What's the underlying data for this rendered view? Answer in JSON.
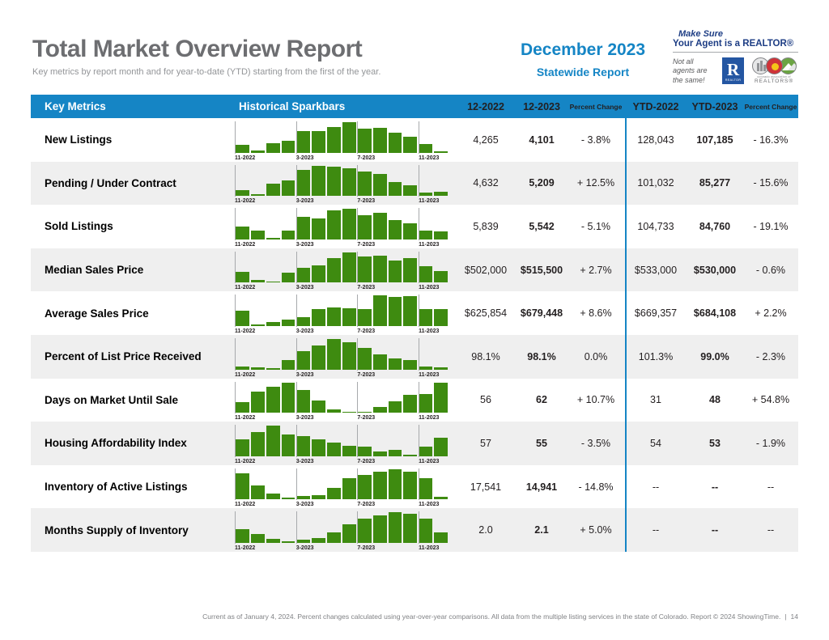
{
  "page": {
    "title": "Total Market Overview Report",
    "subtitle": "Key metrics by report month and for year-to-date (YTD) starting from the first of the year.",
    "report_month": "December 2023",
    "report_scope": "Statewide Report",
    "footer_text": "Current as of January 4, 2024. Percent changes calculated using year-over-year comparisons. All data from the multiple listing services in the state of Colorado. Report © 2024 ShowingTime.",
    "footer_separator": "|",
    "page_number": "14"
  },
  "branding": {
    "tagline_line1": "Make Sure",
    "tagline_line2": "Your Agent is a REALTOR®",
    "tagline_sub": "Not all agents are the same!",
    "realtor_r": "R",
    "realtor_logo_text": "REALTOR",
    "car_logo_line1": "colorado association of",
    "car_logo_line2": "REALTORS®"
  },
  "colors": {
    "header_blue": "#1585c5",
    "bar_green": "#3e8b10",
    "alt_row_gray": "#efefef",
    "title_gray": "#6d6e71",
    "navy": "#1d3d84"
  },
  "table": {
    "columns": {
      "metrics": "Key Metrics",
      "sparkbars": "Historical Sparkbars",
      "month_2022": "12-2022",
      "month_2023": "12-2023",
      "percent_change": "Percent Change",
      "ytd_2022": "YTD-2022",
      "ytd_2023": "YTD-2023",
      "ytd_percent_change": "Percent Change"
    },
    "sparkbar_axis_labels": [
      "11-2022",
      "3-2023",
      "7-2023",
      "11-2023"
    ],
    "sparkbar_gridline_positions_pct": [
      0,
      28.57,
      57.14,
      85.71
    ],
    "rows": [
      {
        "metric": "New Listings",
        "month_2022": "4,265",
        "month_2023": "4,101",
        "percent_change": "- 3.8%",
        "ytd_2022": "128,043",
        "ytd_2023": "107,185",
        "ytd_percent_change": "- 16.3%",
        "sparkbar": [
          25,
          8,
          30,
          38,
          72,
          70,
          85,
          100,
          80,
          82,
          65,
          52,
          27,
          4
        ]
      },
      {
        "metric": "Pending / Under Contract",
        "month_2022": "4,632",
        "month_2023": "5,209",
        "percent_change": "+ 12.5%",
        "ytd_2022": "101,032",
        "ytd_2023": "85,277",
        "ytd_percent_change": "- 15.6%",
        "sparkbar": [
          18,
          6,
          40,
          52,
          85,
          100,
          95,
          92,
          80,
          72,
          45,
          35,
          12,
          15
        ]
      },
      {
        "metric": "Sold Listings",
        "month_2022": "5,839",
        "month_2023": "5,542",
        "percent_change": "- 5.1%",
        "ytd_2022": "104,733",
        "ytd_2023": "84,760",
        "ytd_percent_change": "- 19.1%",
        "sparkbar": [
          42,
          30,
          5,
          28,
          75,
          68,
          95,
          100,
          80,
          88,
          62,
          52,
          28,
          25
        ]
      },
      {
        "metric": "Median Sales Price",
        "month_2022": "$502,000",
        "month_2023": "$515,500",
        "percent_change": "+ 2.7%",
        "ytd_2022": "$533,000",
        "ytd_2023": "$530,000",
        "ytd_percent_change": "- 0.6%",
        "sparkbar": [
          35,
          10,
          4,
          32,
          50,
          58,
          80,
          100,
          85,
          90,
          72,
          80,
          55,
          38
        ]
      },
      {
        "metric": "Average Sales Price",
        "month_2022": "$625,854",
        "month_2023": "$679,448",
        "percent_change": "+ 8.6%",
        "ytd_2022": "$669,357",
        "ytd_2023": "$684,108",
        "ytd_percent_change": "+ 2.2%",
        "sparkbar": [
          50,
          5,
          12,
          20,
          28,
          55,
          60,
          58,
          55,
          100,
          95,
          98,
          55,
          55
        ]
      },
      {
        "metric": "Percent of List Price Received",
        "month_2022": "98.1%",
        "month_2023": "98.1%",
        "percent_change": "0.0%",
        "ytd_2022": "101.3%",
        "ytd_2023": "99.0%",
        "ytd_percent_change": "- 2.3%",
        "sparkbar": [
          10,
          8,
          3,
          30,
          60,
          80,
          100,
          90,
          70,
          50,
          35,
          30,
          10,
          8
        ]
      },
      {
        "metric": "Days on Market Until Sale",
        "month_2022": "56",
        "month_2023": "62",
        "percent_change": "+ 10.7%",
        "ytd_2022": "31",
        "ytd_2023": "48",
        "ytd_percent_change": "+ 54.8%",
        "sparkbar": [
          35,
          70,
          85,
          100,
          75,
          40,
          12,
          4,
          3,
          20,
          38,
          60,
          62,
          100
        ]
      },
      {
        "metric": "Housing Affordability Index",
        "month_2022": "57",
        "month_2023": "55",
        "percent_change": "- 3.5%",
        "ytd_2022": "54",
        "ytd_2023": "53",
        "ytd_percent_change": "- 1.9%",
        "sparkbar": [
          55,
          80,
          100,
          70,
          65,
          55,
          45,
          35,
          32,
          15,
          20,
          5,
          30,
          60
        ]
      },
      {
        "metric": "Inventory of Active Listings",
        "month_2022": "17,541",
        "month_2023": "14,941",
        "percent_change": "- 14.8%",
        "ytd_2022": "--",
        "ytd_2023": "--",
        "ytd_percent_change": "--",
        "sparkbar": [
          85,
          45,
          20,
          5,
          12,
          15,
          38,
          70,
          82,
          92,
          100,
          92,
          70,
          10
        ]
      },
      {
        "metric": "Months Supply of Inventory",
        "month_2022": "2.0",
        "month_2023": "2.1",
        "percent_change": "+ 5.0%",
        "ytd_2022": "--",
        "ytd_2023": "--",
        "ytd_percent_change": "--",
        "sparkbar": [
          45,
          30,
          12,
          5,
          10,
          15,
          35,
          60,
          80,
          90,
          100,
          95,
          80,
          35
        ]
      }
    ]
  }
}
